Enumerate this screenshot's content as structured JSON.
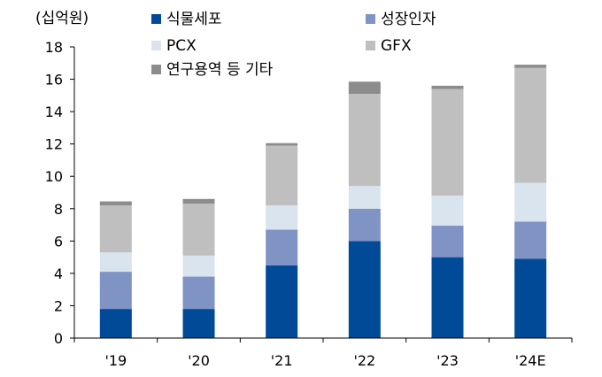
{
  "chart_data": {
    "type": "bar",
    "stacked": true,
    "ylabel": "(십억원)",
    "ylim": [
      0,
      18
    ],
    "yticks": [
      0,
      2,
      4,
      6,
      8,
      10,
      12,
      14,
      16,
      18
    ],
    "categories": [
      "'19",
      "'20",
      "'21",
      "'22",
      "'23",
      "'24E"
    ],
    "grid": false,
    "legend_position": "top",
    "series": [
      {
        "name": "식물세포",
        "color": "#004a98",
        "values": [
          1.8,
          1.8,
          4.5,
          6.0,
          5.0,
          4.9
        ]
      },
      {
        "name": "성장인자",
        "color": "#7f93c4",
        "values": [
          2.3,
          2.0,
          2.2,
          2.0,
          1.95,
          2.3
        ]
      },
      {
        "name": "PCX",
        "color": "#d9e4ef",
        "values": [
          1.2,
          1.3,
          1.5,
          1.4,
          1.85,
          2.4
        ]
      },
      {
        "name": "GFX",
        "color": "#bfbfbf",
        "values": [
          2.9,
          3.2,
          3.7,
          5.7,
          6.6,
          7.1
        ]
      },
      {
        "name": "연구용역 등 기타",
        "color": "#8c8c8c",
        "values": [
          0.25,
          0.3,
          0.15,
          0.75,
          0.2,
          0.2
        ]
      }
    ]
  }
}
